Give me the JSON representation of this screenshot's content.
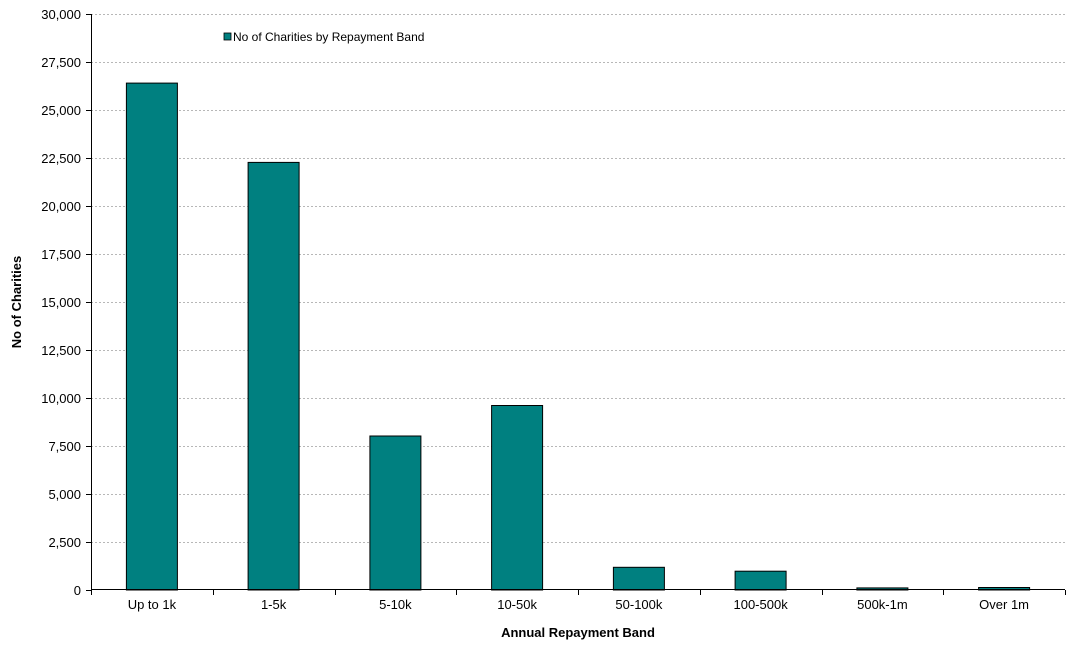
{
  "chart_data": {
    "type": "bar",
    "title": "",
    "xlabel": "Annual Repayment Band",
    "ylabel": "No of Charities",
    "categories": [
      "Up to 1k",
      "1-5k",
      "5-10k",
      "10-50k",
      "50-100k",
      "100-500k",
      "500k-1m",
      "Over 1m"
    ],
    "series": [
      {
        "name": "No of Charities by Repayment Band",
        "values": [
          26400,
          22270,
          8020,
          9610,
          1180,
          980,
          110,
          130
        ],
        "color": "#008080"
      }
    ],
    "ylim": [
      0,
      30000
    ],
    "yticks": [
      "0",
      "2,500",
      "5,000",
      "7,500",
      "10,000",
      "12,500",
      "15,000",
      "17,500",
      "20,000",
      "22,500",
      "25,000",
      "27,500",
      "30,000"
    ],
    "ytick_values": [
      0,
      2500,
      5000,
      7500,
      10000,
      12500,
      15000,
      17500,
      20000,
      22500,
      25000,
      27500,
      30000
    ],
    "grid": true,
    "legend_position": "top-left"
  }
}
